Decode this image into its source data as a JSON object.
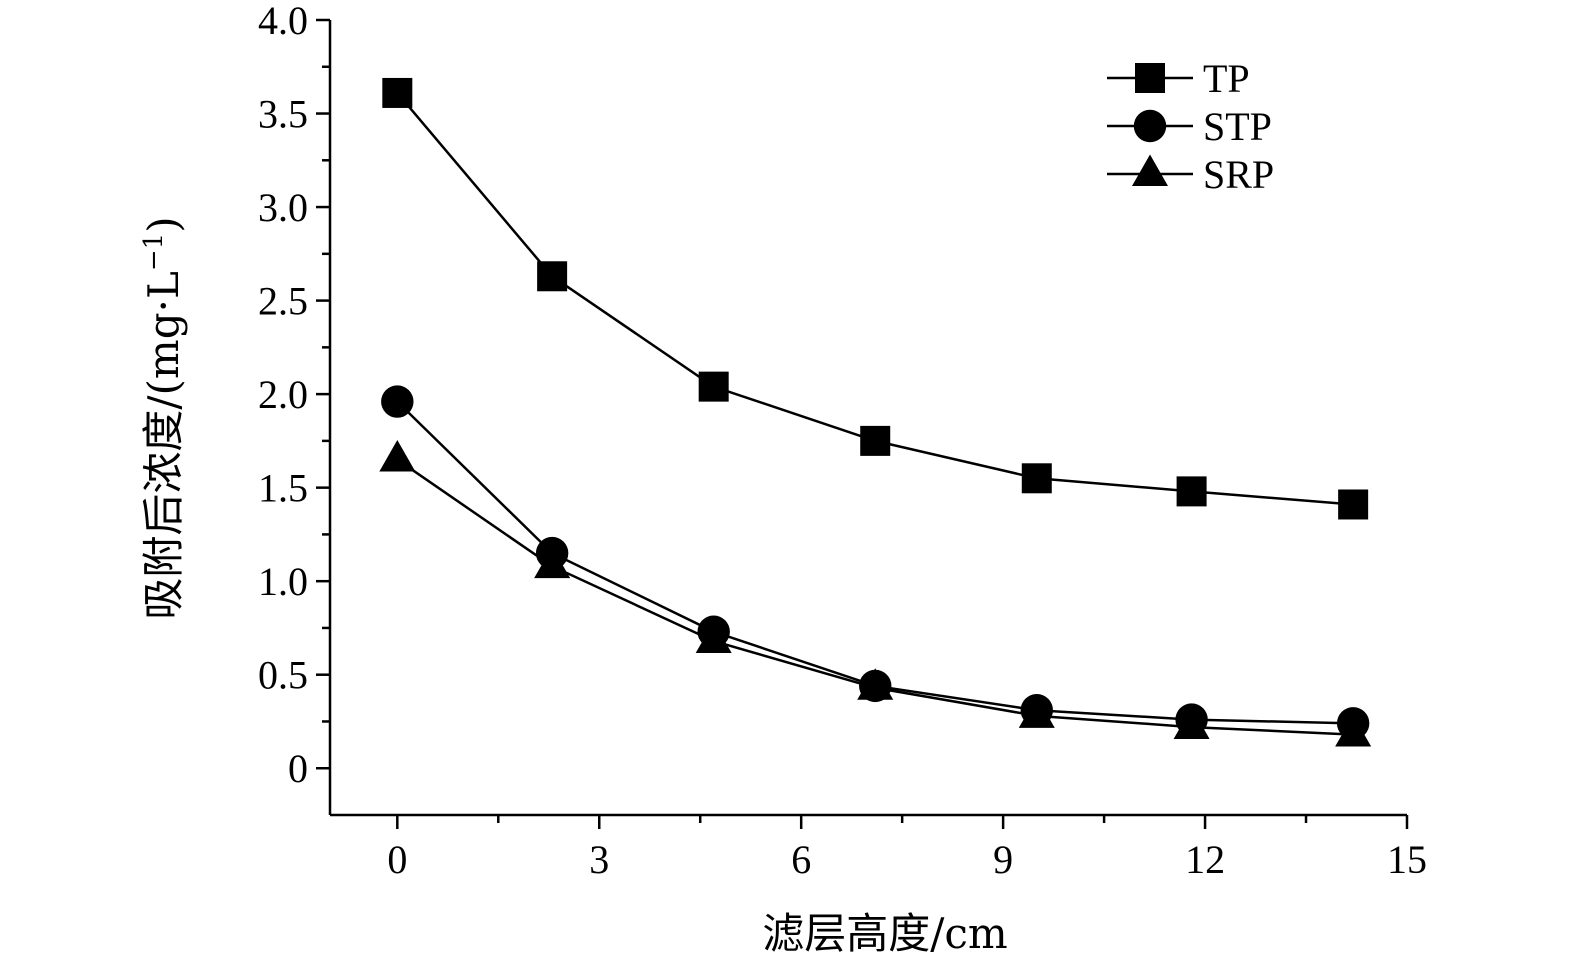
{
  "chart_data": {
    "type": "line",
    "xlabel": "滤层高度/cm",
    "ylabel_main": "吸附后浓度/(mg",
    "ylabel_mid": "·",
    "ylabel_unit": "L",
    "ylabel_exp": "−1",
    "ylabel_close": ")",
    "xlim": [
      -1.0,
      15
    ],
    "ylim": [
      -0.25,
      4.0
    ],
    "xticks": [
      0,
      3,
      6,
      9,
      12,
      15
    ],
    "xtick_labels": [
      "0",
      "3",
      "6",
      "9",
      "12",
      "15"
    ],
    "yticks": [
      0,
      0.5,
      1.0,
      1.5,
      2.0,
      2.5,
      3.0,
      3.5,
      4.0
    ],
    "ytick_labels": [
      "0",
      "0.5",
      "1.0",
      "1.5",
      "2.0",
      "2.5",
      "3.0",
      "3.5",
      "4.0"
    ],
    "grid": false,
    "legend_position": "top-right",
    "x": [
      0,
      2.3,
      4.7,
      7.1,
      9.5,
      11.8,
      14.2
    ],
    "series": [
      {
        "name": "TP",
        "marker": "square",
        "values": [
          3.61,
          2.63,
          2.04,
          1.75,
          1.55,
          1.48,
          1.41
        ]
      },
      {
        "name": "STP",
        "marker": "circle",
        "values": [
          1.96,
          1.15,
          0.73,
          0.44,
          0.31,
          0.26,
          0.24
        ]
      },
      {
        "name": "SRP",
        "marker": "triangle",
        "values": [
          1.65,
          1.08,
          0.68,
          0.43,
          0.28,
          0.22,
          0.18
        ]
      }
    ]
  }
}
